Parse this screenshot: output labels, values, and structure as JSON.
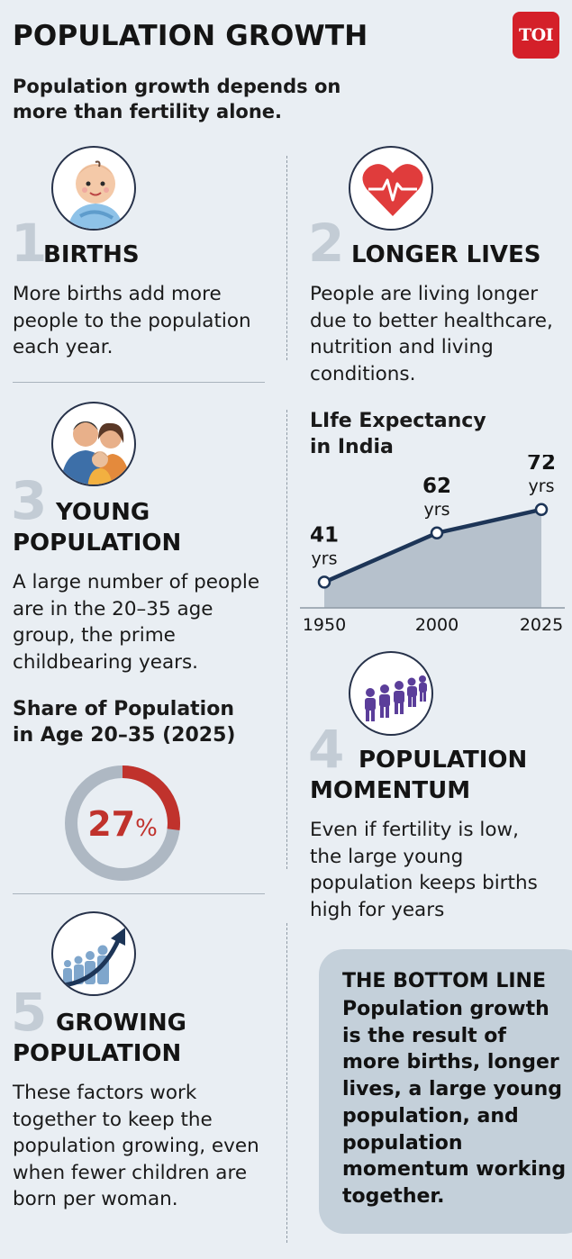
{
  "header": {
    "title": "POPULATION GROWTH",
    "logo": "TOI",
    "subtitle": "Population growth depends on more than fertility alone."
  },
  "sections": [
    {
      "number": "1",
      "heading": "BIRTHS",
      "icon": "baby-icon",
      "text": "More births add more people to the population each year."
    },
    {
      "number": "2",
      "heading": "LONGER LIVES",
      "icon": "heart-icon",
      "text": "People are living longer due to better healthcare, nutrition and living conditions."
    },
    {
      "number": "3",
      "heading": "YOUNG POPULATION",
      "icon": "family-icon",
      "text": "A large number of people are in the 20–35 age group, the prime childbearing years."
    },
    {
      "number": "4",
      "heading": "POPULATION MOMENTUM",
      "icon": "people-row-icon",
      "text": "Even if fertility is low, the large young population keeps births high for years"
    },
    {
      "number": "5",
      "heading": "GROWING POPULATION",
      "icon": "growth-arrow-icon",
      "text": "These factors work together to keep the population growing, even when fewer children are born per woman."
    }
  ],
  "bottom_line": {
    "title": "THE BOTTOM LINE",
    "text": "Population growth is the result of more births, longer lives, a large young population, and population momentum working together."
  },
  "chart_data": [
    {
      "type": "area",
      "title": "LIfe Expectancy in India",
      "x": [
        "1950",
        "2000",
        "2025"
      ],
      "values": [
        41,
        62,
        72
      ],
      "value_labels": [
        "41",
        "62",
        "72"
      ],
      "unit": "yrs",
      "ylim": [
        30,
        80
      ],
      "colors": {
        "line": "#1d3557",
        "fill": "#b6c1cc"
      }
    },
    {
      "type": "pie",
      "title": "Share of Population in Age 20–35 (2025)",
      "value": 27,
      "value_label": "27",
      "unit": "%",
      "colors": {
        "share": "#c0322c",
        "rest": "#aeb8c3"
      }
    }
  ]
}
